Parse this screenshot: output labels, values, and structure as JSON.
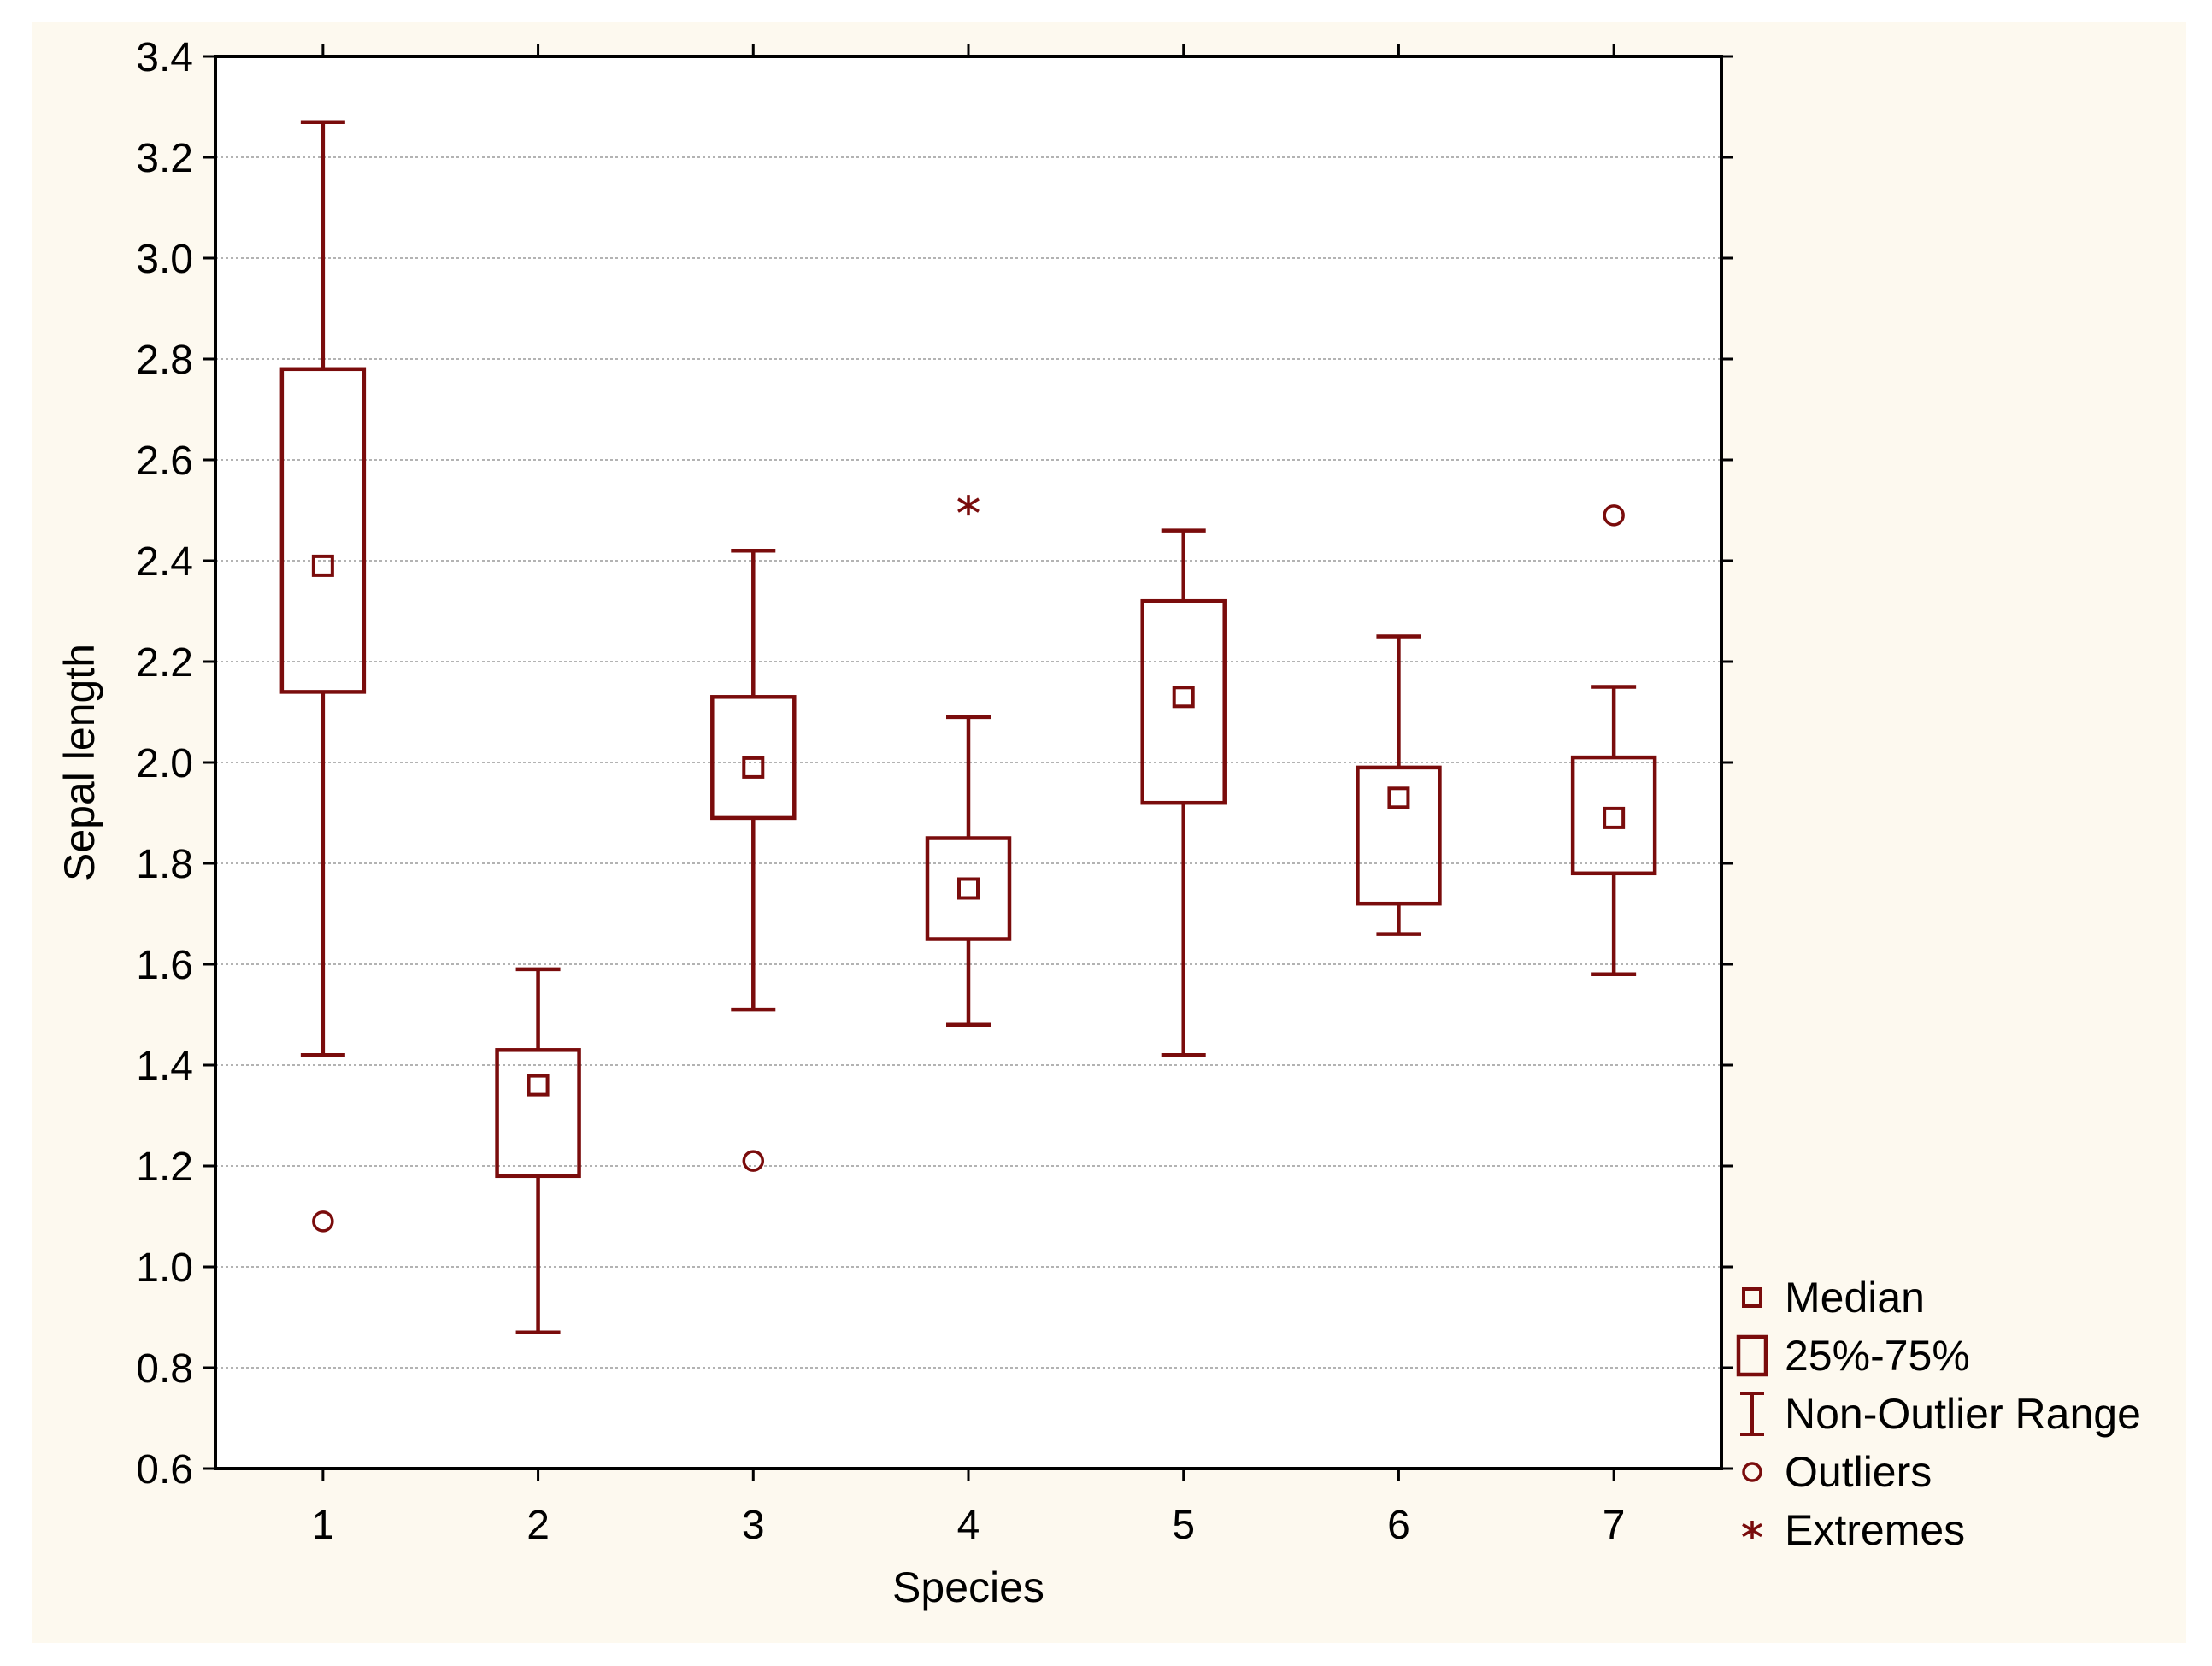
{
  "chart_data": {
    "type": "boxplot",
    "xlabel": "Species",
    "ylabel": "Sepal length",
    "ylim": [
      0.6,
      3.4
    ],
    "yticks": [
      "0.6",
      "0.8",
      "1.0",
      "1.2",
      "1.4",
      "1.6",
      "1.8",
      "2.0",
      "2.2",
      "2.4",
      "2.6",
      "2.8",
      "3.0",
      "3.2",
      "3.4"
    ],
    "categories": [
      "1",
      "2",
      "3",
      "4",
      "5",
      "6",
      "7"
    ],
    "series": [
      {
        "category": "1",
        "median": 2.39,
        "q1": 2.14,
        "q3": 2.78,
        "whisker_low": 1.42,
        "whisker_high": 3.27,
        "outliers": [
          1.09
        ],
        "extremes": []
      },
      {
        "category": "2",
        "median": 1.36,
        "q1": 1.18,
        "q3": 1.43,
        "whisker_low": 0.87,
        "whisker_high": 1.59,
        "outliers": [],
        "extremes": []
      },
      {
        "category": "3",
        "median": 1.99,
        "q1": 1.89,
        "q3": 2.13,
        "whisker_low": 1.51,
        "whisker_high": 2.42,
        "outliers": [
          1.21
        ],
        "extremes": []
      },
      {
        "category": "4",
        "median": 1.75,
        "q1": 1.65,
        "q3": 1.85,
        "whisker_low": 1.48,
        "whisker_high": 2.09,
        "outliers": [],
        "extremes": [
          2.51
        ]
      },
      {
        "category": "5",
        "median": 2.13,
        "q1": 1.92,
        "q3": 2.32,
        "whisker_low": 1.42,
        "whisker_high": 2.46,
        "outliers": [],
        "extremes": []
      },
      {
        "category": "6",
        "median": 1.93,
        "q1": 1.72,
        "q3": 1.99,
        "whisker_low": 1.66,
        "whisker_high": 2.25,
        "outliers": [],
        "extremes": []
      },
      {
        "category": "7",
        "median": 1.89,
        "q1": 1.78,
        "q3": 2.01,
        "whisker_low": 1.58,
        "whisker_high": 2.15,
        "outliers": [
          2.49
        ],
        "extremes": []
      }
    ],
    "legend": {
      "position": "bottom-right",
      "items": [
        {
          "symbol": "median",
          "label": "Median"
        },
        {
          "symbol": "box",
          "label": "25%-75%"
        },
        {
          "symbol": "whisker",
          "label": "Non-Outlier Range"
        },
        {
          "symbol": "outlier",
          "label": "Outliers"
        },
        {
          "symbol": "extreme",
          "label": "Extremes"
        }
      ]
    },
    "grid": true,
    "colors": {
      "mark": "#7a0c0c",
      "grid": "#9a9a9a",
      "axis": "#000000",
      "background": "#fdf9ef",
      "plot_background": "#ffffff"
    }
  }
}
